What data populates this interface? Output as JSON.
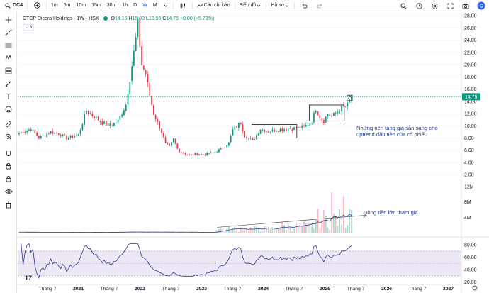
{
  "toolbar": {
    "symbol": "DC4",
    "timeframes": [
      "1m",
      "5m",
      "10m",
      "15m",
      "30m",
      "1h",
      "D",
      "W",
      "M"
    ],
    "active_timeframe": "W",
    "indicators_label": "Các chỉ báo",
    "chart_label": "Biểu đồ",
    "profile_label": "Hồ sơ"
  },
  "legend": {
    "name": "CTCP Dicera Holdings · 1W · HSX",
    "o_label": "O",
    "o": "14.15",
    "h_label": "H",
    "h": "15.00",
    "l_label": "L",
    "l": "13.95",
    "c_label": "C",
    "c": "14.75",
    "change": "+0.80 (+5.73%)",
    "collapsed_count": "8"
  },
  "annotations": {
    "base_note": "Những nền tảng giá sẵn sàng cho\nuptrend đầu tiên của cổ phiếu",
    "money_note": "Dòng tiền lớn tham gia"
  },
  "colors": {
    "up": "#089981",
    "down": "#f23645",
    "accent": "#2962ff",
    "rsi_line": "#2a3a8c",
    "rsi_band": "#ede7f6",
    "volume_ma": "#2a3a8c",
    "note": "#1e3a8a"
  },
  "icons": {
    "left_toolbar": [
      "crosshair-icon",
      "trendline-icon",
      "fib-icon",
      "pattern-icon",
      "long-short-icon",
      "brush-icon",
      "text-icon",
      "emoji-icon",
      "ruler-icon",
      "zoom-in-icon",
      "magnet-icon",
      "lock-drawings-icon",
      "lock-icon",
      "eye-icon",
      "trash-icon"
    ]
  },
  "chart_data": {
    "type": "candlestick",
    "price_axis": {
      "ticks": [
        "28.00",
        "26.00",
        "24.00",
        "22.00",
        "20.00",
        "18.00",
        "16.00",
        "14.00",
        "12.00",
        "10.00",
        "8.00",
        "6.00",
        "4.00",
        "2.00"
      ],
      "last_price_label": "14.75",
      "range": [
        0.4,
        28.6
      ]
    },
    "volume_axis": {
      "ticks": [
        "12M",
        "8M",
        "4M"
      ],
      "range": [
        0,
        12.2
      ]
    },
    "rsi_axis": {
      "ticks": [
        "80.00",
        "60.00",
        "40.00",
        "20.00"
      ],
      "range": [
        15,
        86
      ],
      "bands": [
        70,
        30
      ]
    },
    "time_axis": {
      "labels": [
        "Tháng 7",
        "2021",
        "Tháng 7",
        "2022",
        "Tháng 7",
        "2023",
        "Tháng 7",
        "2024",
        "Tháng 7",
        "2025",
        "Tháng 7",
        "2026",
        "Tháng 7",
        "2027"
      ]
    },
    "price_path": [
      [
        0,
        8.8
      ],
      [
        6,
        9.5
      ],
      [
        10,
        8.0
      ],
      [
        16,
        9.0
      ],
      [
        20,
        8.7
      ],
      [
        24,
        8.0
      ],
      [
        30,
        8.5
      ],
      [
        34,
        12.5
      ],
      [
        38,
        11.5
      ],
      [
        42,
        10.5
      ],
      [
        46,
        10.0
      ],
      [
        50,
        10.8
      ],
      [
        54,
        13.5
      ],
      [
        58,
        22
      ],
      [
        60,
        26.5
      ],
      [
        62,
        20
      ],
      [
        64,
        18.5
      ],
      [
        66,
        15
      ],
      [
        68,
        12
      ],
      [
        70,
        10.5
      ],
      [
        72,
        9
      ],
      [
        74,
        7
      ],
      [
        76,
        6.5
      ],
      [
        78,
        7.8
      ],
      [
        80,
        6.2
      ],
      [
        82,
        5.6
      ],
      [
        86,
        5.2
      ],
      [
        90,
        5.4
      ],
      [
        94,
        5.3
      ],
      [
        98,
        5.6
      ],
      [
        102,
        6.2
      ],
      [
        106,
        7.2
      ],
      [
        108,
        9.3
      ],
      [
        112,
        10.5
      ],
      [
        114,
        8.4
      ],
      [
        118,
        7.5
      ],
      [
        122,
        9.5
      ],
      [
        126,
        9.1
      ],
      [
        130,
        9.3
      ],
      [
        134,
        9.5
      ],
      [
        140,
        9.6
      ],
      [
        144,
        9.8
      ],
      [
        148,
        10.8
      ],
      [
        150,
        12.8
      ],
      [
        152,
        11.5
      ],
      [
        154,
        10.8
      ],
      [
        156,
        12.0
      ],
      [
        158,
        11.5
      ],
      [
        162,
        12.6
      ],
      [
        166,
        13.4
      ],
      [
        168,
        14.75
      ]
    ],
    "boxes": [
      {
        "x": [
          118,
          140
        ],
        "y": [
          8.0,
          10.2
        ]
      },
      {
        "x": [
          147,
          164
        ],
        "y": [
          10.8,
          13.4
        ]
      },
      {
        "x": [
          166,
          168
        ],
        "y": [
          14.1,
          15.0
        ]
      }
    ],
    "resistance_level": 14.75,
    "volume_trendline": [
      [
        100,
        1.4
      ],
      [
        172,
        4.0
      ]
    ]
  }
}
